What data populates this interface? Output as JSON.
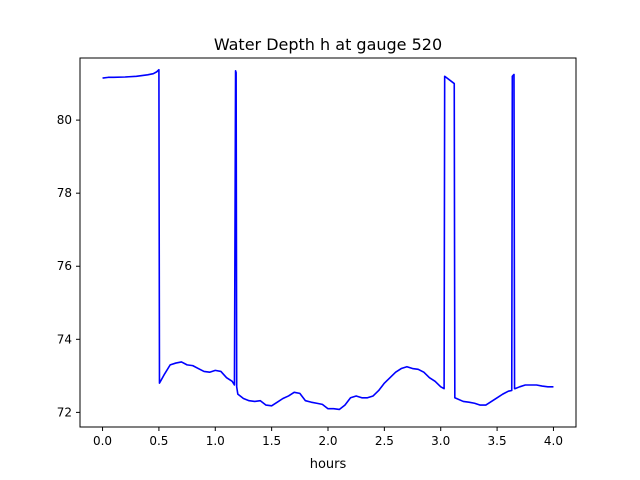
{
  "chart_data": {
    "type": "line",
    "title": "Water Depth h at gauge 520",
    "xlabel": "hours",
    "ylabel": "",
    "xlim": [
      -0.2,
      4.2
    ],
    "ylim": [
      71.6,
      81.7
    ],
    "xticks": [
      0.0,
      0.5,
      1.0,
      1.5,
      2.0,
      2.5,
      3.0,
      3.5,
      4.0
    ],
    "xtick_labels": [
      "0.0",
      "0.5",
      "1.0",
      "1.5",
      "2.0",
      "2.5",
      "3.0",
      "3.5",
      "4.0"
    ],
    "yticks": [
      72,
      74,
      76,
      78,
      80
    ],
    "ytick_labels": [
      "72",
      "74",
      "76",
      "78",
      "80"
    ],
    "grid": false,
    "series": [
      {
        "color": "#0000ff",
        "x": [
          0.0,
          0.05,
          0.1,
          0.2,
          0.3,
          0.4,
          0.45,
          0.48,
          0.5,
          0.505,
          0.55,
          0.6,
          0.65,
          0.7,
          0.75,
          0.8,
          0.85,
          0.9,
          0.95,
          1.0,
          1.05,
          1.1,
          1.15,
          1.17,
          1.18,
          1.185,
          1.19,
          1.195,
          1.2,
          1.25,
          1.3,
          1.35,
          1.4,
          1.45,
          1.5,
          1.55,
          1.6,
          1.65,
          1.7,
          1.75,
          1.8,
          1.85,
          1.9,
          1.95,
          2.0,
          2.05,
          2.1,
          2.15,
          2.2,
          2.25,
          2.3,
          2.35,
          2.4,
          2.45,
          2.5,
          2.55,
          2.6,
          2.65,
          2.7,
          2.75,
          2.8,
          2.85,
          2.9,
          2.95,
          3.0,
          3.03,
          3.035,
          3.12,
          3.125,
          3.2,
          3.25,
          3.3,
          3.35,
          3.4,
          3.45,
          3.5,
          3.55,
          3.6,
          3.63,
          3.635,
          3.65,
          3.655,
          3.66,
          3.7,
          3.75,
          3.8,
          3.85,
          3.9,
          3.95,
          4.0
        ],
        "y": [
          81.15,
          81.17,
          81.17,
          81.18,
          81.2,
          81.24,
          81.27,
          81.32,
          81.38,
          72.8,
          73.05,
          73.3,
          73.35,
          73.38,
          73.3,
          73.28,
          73.2,
          73.12,
          73.1,
          73.15,
          73.12,
          72.95,
          72.85,
          72.75,
          81.35,
          81.3,
          72.7,
          72.6,
          72.5,
          72.38,
          72.32,
          72.3,
          72.32,
          72.2,
          72.18,
          72.28,
          72.38,
          72.45,
          72.55,
          72.52,
          72.32,
          72.28,
          72.25,
          72.22,
          72.1,
          72.1,
          72.08,
          72.2,
          72.4,
          72.45,
          72.4,
          72.4,
          72.45,
          72.6,
          72.8,
          72.95,
          73.1,
          73.2,
          73.25,
          73.2,
          73.18,
          73.1,
          72.95,
          72.85,
          72.7,
          72.65,
          81.2,
          81.0,
          72.4,
          72.3,
          72.28,
          72.25,
          72.2,
          72.2,
          72.3,
          72.4,
          72.5,
          72.58,
          72.6,
          81.2,
          81.25,
          72.65,
          72.65,
          72.7,
          72.75,
          72.75,
          72.75,
          72.72,
          72.7,
          72.7
        ]
      }
    ]
  }
}
